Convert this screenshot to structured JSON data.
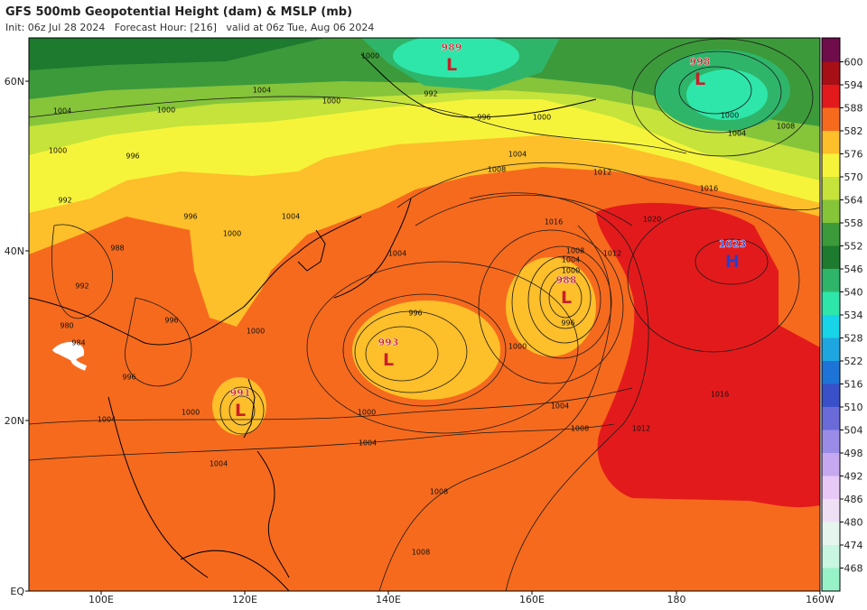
{
  "header": {
    "title": "GFS 500mb Geopotential Height (dam) & MSLP (mb)",
    "subtitle": "Init: 06z Jul 28 2024   Forecast Hour: [216]   valid at 06z Tue, Aug 06 2024"
  },
  "lat_labels": [
    "60N",
    "40N",
    "20N",
    "EQ"
  ],
  "lon_labels": [
    "100E",
    "120E",
    "140E",
    "160E",
    "180",
    "160W"
  ],
  "colorbar": {
    "levels": [
      600,
      594,
      588,
      582,
      576,
      570,
      564,
      558,
      552,
      546,
      540,
      534,
      528,
      522,
      516,
      510,
      504,
      498,
      492,
      486,
      480,
      474,
      468
    ],
    "colors": [
      "#6f0d4a",
      "#a50f15",
      "#e31a1c",
      "#f66a1d",
      "#fdbf2a",
      "#f6f43a",
      "#c5e33a",
      "#86c43a",
      "#3c9a3a",
      "#1e7a2e",
      "#2eb56a",
      "#2ee6a9",
      "#18d4e8",
      "#1ea6e0",
      "#1e74d6",
      "#3a50c8",
      "#6a6ad8",
      "#9a8ce6",
      "#c6a8f0",
      "#e8c8f6",
      "#f0e0f6",
      "#e6f6ee",
      "#c8f6e0",
      "#98f2c8"
    ]
  },
  "pressure_centers": [
    {
      "value": 989,
      "symbol": "L"
    },
    {
      "value": 998,
      "symbol": "L"
    },
    {
      "value": 1023,
      "symbol": "H"
    },
    {
      "value": 988,
      "symbol": "L"
    },
    {
      "value": 993,
      "symbol": "L"
    },
    {
      "value": 991,
      "symbol": "L"
    }
  ],
  "isobar_labels": [
    1004,
    1000,
    992,
    996,
    1000,
    1004,
    1008,
    1012,
    1016,
    1016,
    1020,
    1008,
    1012,
    1004,
    1000,
    996,
    1000,
    996,
    1004,
    1008,
    1012,
    1016,
    1000,
    1004,
    1004,
    1000,
    1004,
    1008,
    1008,
    1000,
    1004,
    1000,
    996,
    988,
    992,
    980,
    984,
    996,
    996,
    1000,
    1004,
    1000,
    996,
    992,
    1004,
    1000,
    1008,
    1004,
    1000
  ]
}
